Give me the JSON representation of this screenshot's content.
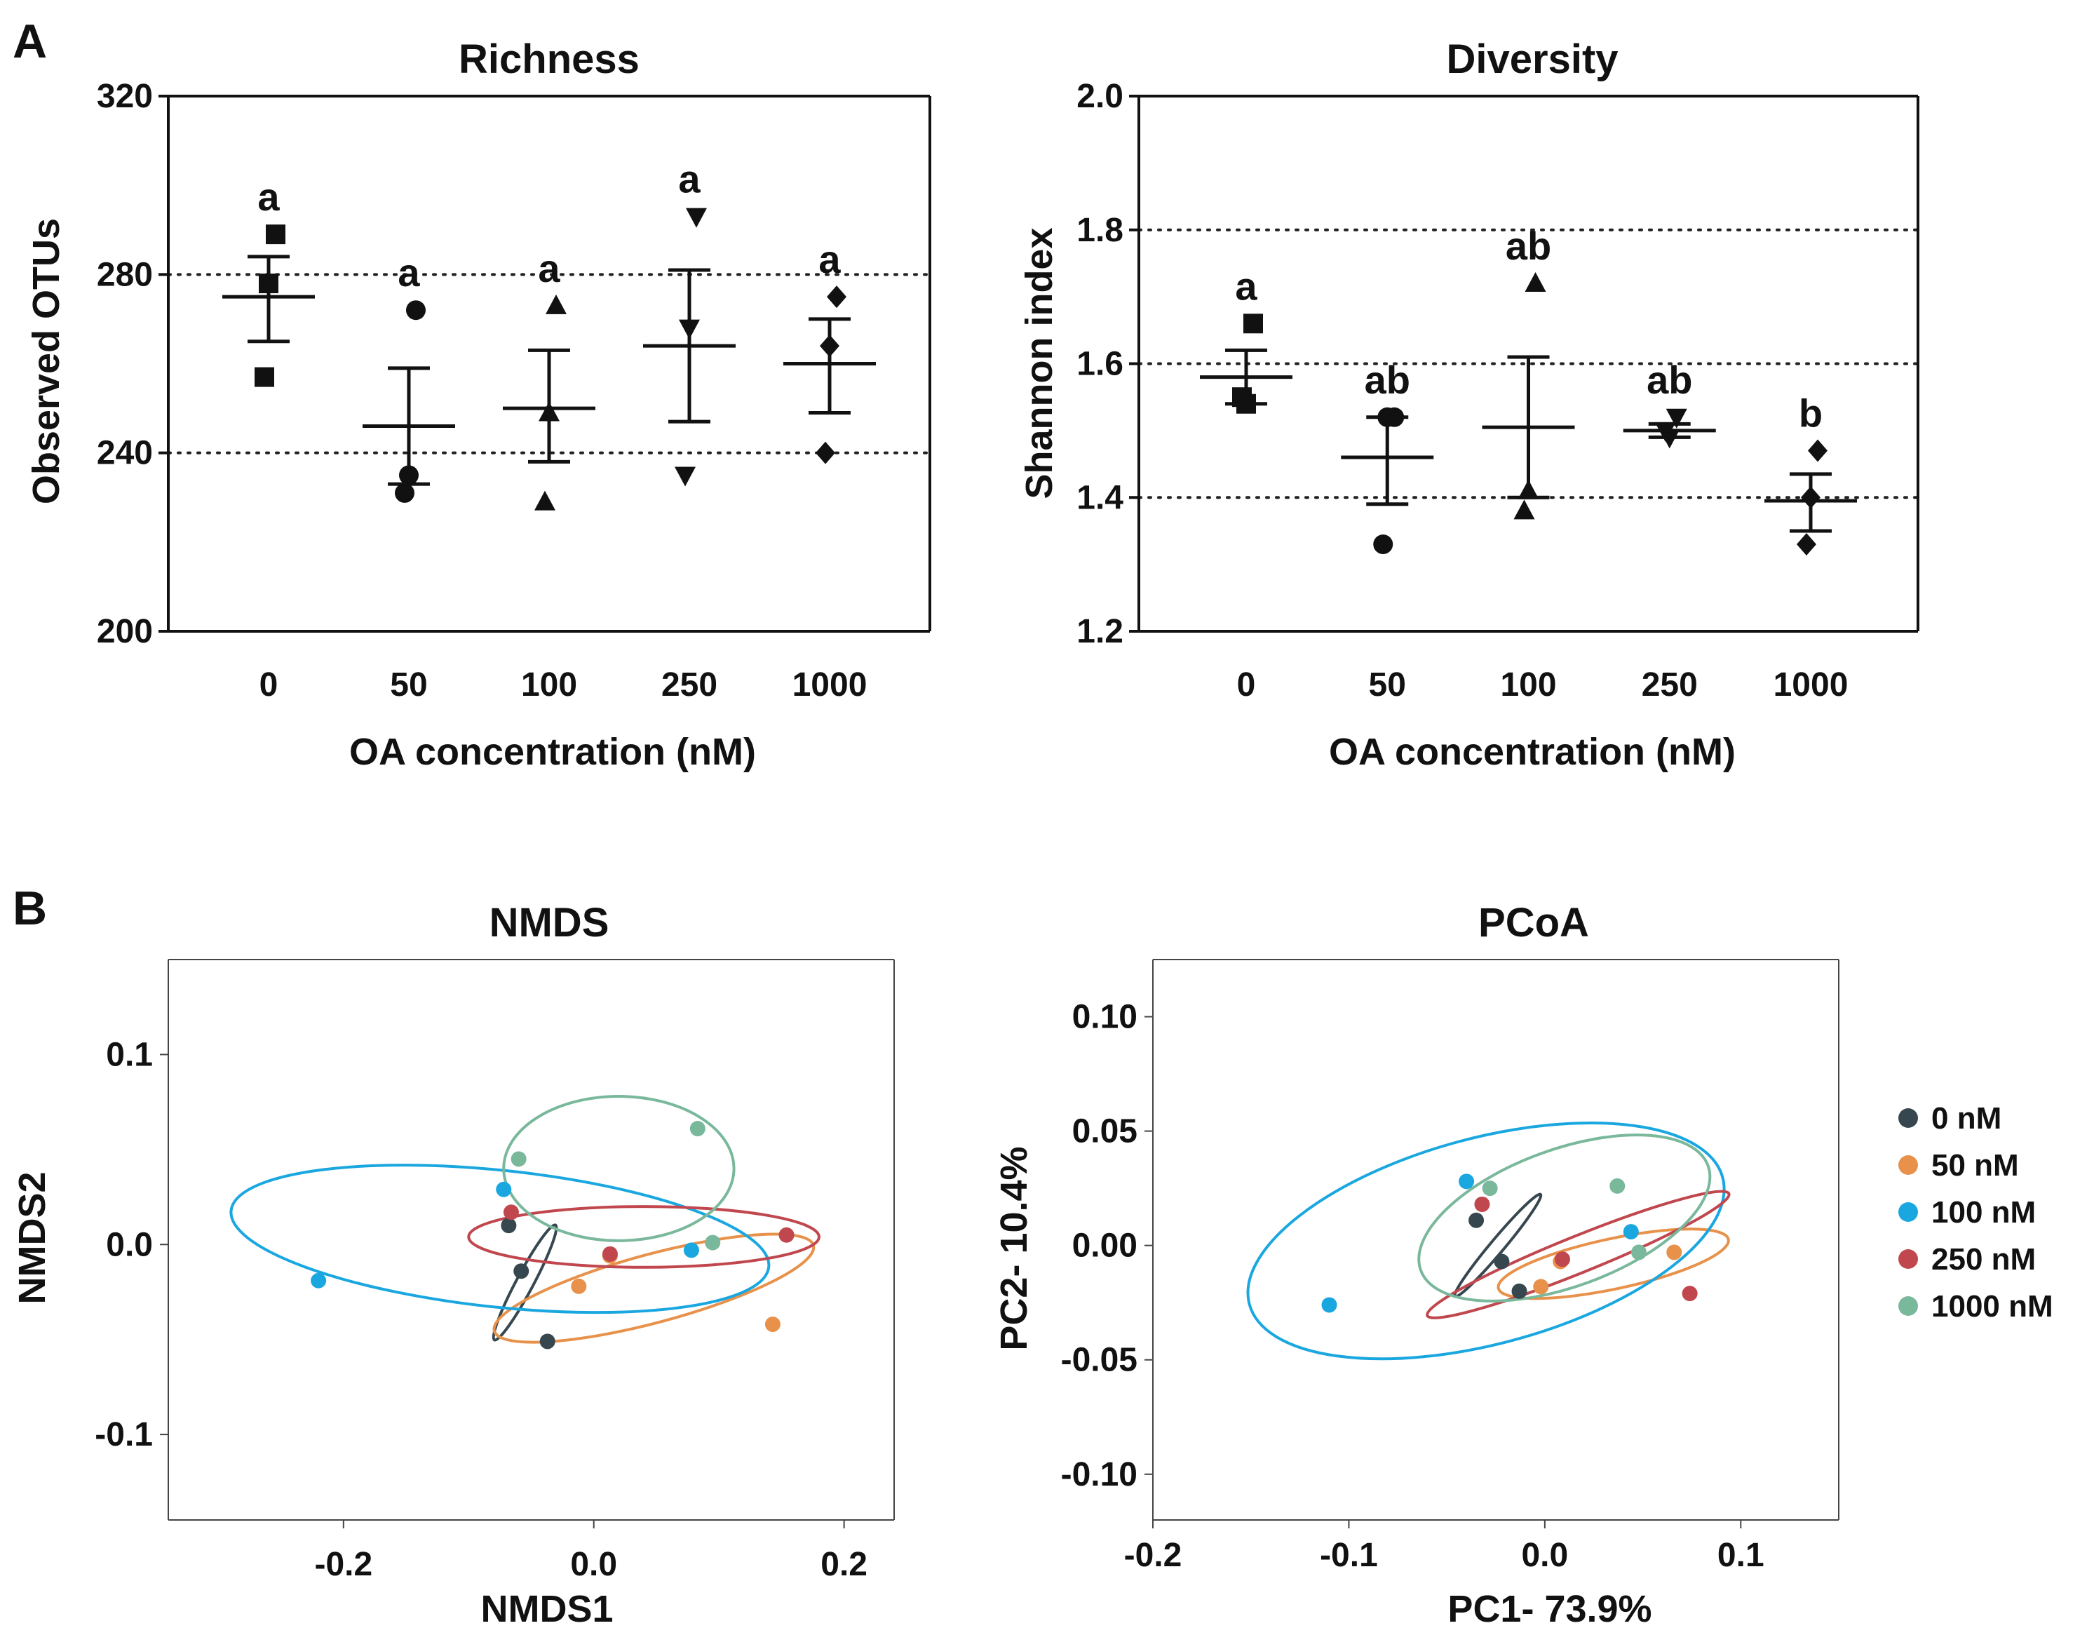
{
  "panel_labels": [
    "A",
    "B"
  ],
  "chart_data": [
    {
      "id": "richness",
      "type": "scatter",
      "title": "Richness",
      "xlabel": "OA concentration (nM)",
      "ylabel": "Observed OTUs",
      "categories": [
        "0",
        "50",
        "100",
        "250",
        "1000"
      ],
      "ylim": [
        200,
        320
      ],
      "yticks": [
        "200",
        "240",
        "280",
        "320"
      ],
      "ref_lines": [
        240,
        280
      ],
      "groups": [
        {
          "label": "0",
          "marker": "square",
          "points": [
            289,
            278,
            257
          ],
          "mean": 275,
          "sem_low": 265,
          "sem_high": 284,
          "sig": "a"
        },
        {
          "label": "50",
          "marker": "circle",
          "points": [
            272,
            235,
            231
          ],
          "mean": 246,
          "sem_low": 233,
          "sem_high": 259,
          "sig": "a"
        },
        {
          "label": "100",
          "marker": "triangle-up",
          "points": [
            273,
            249,
            229
          ],
          "mean": 250,
          "sem_low": 238,
          "sem_high": 263,
          "sig": "a"
        },
        {
          "label": "250",
          "marker": "triangle-down",
          "points": [
            293,
            268,
            235
          ],
          "mean": 264,
          "sem_low": 247,
          "sem_high": 281,
          "sig": "a"
        },
        {
          "label": "1000",
          "marker": "diamond",
          "points": [
            275,
            264,
            240
          ],
          "mean": 260,
          "sem_low": 249,
          "sem_high": 270,
          "sig": "a"
        }
      ]
    },
    {
      "id": "diversity",
      "type": "scatter",
      "title": "Diversity",
      "xlabel": "OA concentration (nM)",
      "ylabel": "Shannon index",
      "categories": [
        "0",
        "50",
        "100",
        "250",
        "1000"
      ],
      "ylim": [
        1.2,
        2.0
      ],
      "yticks": [
        "1.2",
        "1.4",
        "1.6",
        "1.8",
        "2.0"
      ],
      "ref_lines": [
        1.4,
        1.6,
        1.8
      ],
      "groups": [
        {
          "label": "0",
          "marker": "square",
          "points": [
            1.66,
            1.54,
            1.55
          ],
          "mean": 1.58,
          "sem_low": 1.54,
          "sem_high": 1.62,
          "sig": "a"
        },
        {
          "label": "50",
          "marker": "circle",
          "points": [
            1.52,
            1.52,
            1.33
          ],
          "mean": 1.46,
          "sem_low": 1.39,
          "sem_high": 1.52,
          "sig": "ab"
        },
        {
          "label": "100",
          "marker": "triangle-up",
          "points": [
            1.72,
            1.41,
            1.38
          ],
          "mean": 1.505,
          "sem_low": 1.4,
          "sem_high": 1.61,
          "sig": "ab"
        },
        {
          "label": "250",
          "marker": "triangle-down",
          "points": [
            1.52,
            1.49,
            1.5
          ],
          "mean": 1.5,
          "sem_low": 1.49,
          "sem_high": 1.51,
          "sig": "ab"
        },
        {
          "label": "1000",
          "marker": "diamond",
          "points": [
            1.47,
            1.4,
            1.33
          ],
          "mean": 1.395,
          "sem_low": 1.35,
          "sem_high": 1.435,
          "sig": "b"
        }
      ]
    },
    {
      "id": "nmds",
      "type": "scatter",
      "title": "NMDS",
      "xlabel": "NMDS1",
      "ylabel": "NMDS2",
      "xlim": [
        -0.34,
        0.24
      ],
      "ylim": [
        -0.145,
        0.15
      ],
      "xticks": [
        "-0.2",
        "0.0",
        "0.2"
      ],
      "yticks": [
        "-0.1",
        "0.0",
        "0.1"
      ],
      "series": [
        {
          "name": "0 nM",
          "color": "#37474f",
          "points": [
            [
              -0.068,
              0.01
            ],
            [
              -0.058,
              -0.014
            ],
            [
              -0.037,
              -0.051
            ]
          ],
          "ellipse": {
            "cx": -0.055,
            "cy": -0.02,
            "a": 0.052,
            "b": 0.0045,
            "angle": -62
          }
        },
        {
          "name": "50 nM",
          "color": "#e8914a",
          "points": [
            [
              -0.012,
              -0.022
            ],
            [
              0.143,
              -0.042
            ],
            [
              0.013,
              -0.006
            ]
          ],
          "ellipse": {
            "cx": 0.048,
            "cy": -0.023,
            "a": 0.132,
            "b": 0.018,
            "angle": -15
          }
        },
        {
          "name": "100 nM",
          "color": "#1aa7e0",
          "points": [
            [
              -0.22,
              -0.019
            ],
            [
              -0.072,
              0.029
            ],
            [
              0.078,
              -0.003
            ]
          ],
          "ellipse": {
            "cx": -0.075,
            "cy": 0.003,
            "a": 0.216,
            "b": 0.036,
            "angle": 6
          }
        },
        {
          "name": "250 nM",
          "color": "#c0474d",
          "points": [
            [
              -0.066,
              0.017
            ],
            [
              0.013,
              -0.005
            ],
            [
              0.154,
              0.005
            ]
          ],
          "ellipse": {
            "cx": 0.04,
            "cy": 0.004,
            "a": 0.14,
            "b": 0.016,
            "angle": 0
          }
        },
        {
          "name": "1000 nM",
          "color": "#7ab89c",
          "points": [
            [
              -0.06,
              0.045
            ],
            [
              0.083,
              0.061
            ],
            [
              0.095,
              0.001
            ]
          ],
          "ellipse": {
            "cx": 0.02,
            "cy": 0.04,
            "a": 0.092,
            "b": 0.038,
            "angle": 0
          }
        }
      ]
    },
    {
      "id": "pcoa",
      "type": "scatter",
      "title": "PCoA",
      "xlabel": "PC1- 73.9%",
      "ylabel": "PC2- 10.4%",
      "xlim": [
        -0.2,
        0.15
      ],
      "ylim": [
        -0.12,
        0.125
      ],
      "xticks": [
        "-0.2",
        "-0.1",
        "0.0",
        "0.1"
      ],
      "yticks": [
        "-0.10",
        "-0.05",
        "0.00",
        "0.05",
        "0.10"
      ],
      "series": [
        {
          "name": "0 nM",
          "color": "#37474f",
          "points": [
            [
              -0.035,
              0.011
            ],
            [
              -0.022,
              -0.007
            ],
            [
              -0.013,
              -0.02
            ]
          ],
          "ellipse": {
            "cx": -0.024,
            "cy": 0,
            "a": 0.034,
            "b": 0.003,
            "angle": -50
          }
        },
        {
          "name": "50 nM",
          "color": "#e8914a",
          "points": [
            [
              0.066,
              -0.003
            ],
            [
              -0.002,
              -0.018
            ],
            [
              0.008,
              -0.007
            ]
          ],
          "ellipse": {
            "cx": 0.035,
            "cy": -0.008,
            "a": 0.06,
            "b": 0.011,
            "angle": -12
          }
        },
        {
          "name": "100 nM",
          "color": "#1aa7e0",
          "points": [
            [
              -0.11,
              -0.026
            ],
            [
              -0.04,
              0.028
            ],
            [
              0.044,
              0.006
            ]
          ],
          "ellipse": {
            "cx": -0.03,
            "cy": 0.002,
            "a": 0.125,
            "b": 0.045,
            "angle": -15
          }
        },
        {
          "name": "250 nM",
          "color": "#c0474d",
          "points": [
            [
              -0.032,
              0.018
            ],
            [
              0.009,
              -0.006
            ],
            [
              0.074,
              -0.021
            ]
          ],
          "ellipse": {
            "cx": 0.017,
            "cy": -0.004,
            "a": 0.083,
            "b": 0.008,
            "angle": -22
          }
        },
        {
          "name": "1000 nM",
          "color": "#7ab89c",
          "points": [
            [
              -0.028,
              0.025
            ],
            [
              0.037,
              0.026
            ],
            [
              0.048,
              -0.003
            ]
          ],
          "ellipse": {
            "cx": 0.01,
            "cy": 0.012,
            "a": 0.078,
            "b": 0.03,
            "angle": -20
          }
        }
      ]
    }
  ]
}
